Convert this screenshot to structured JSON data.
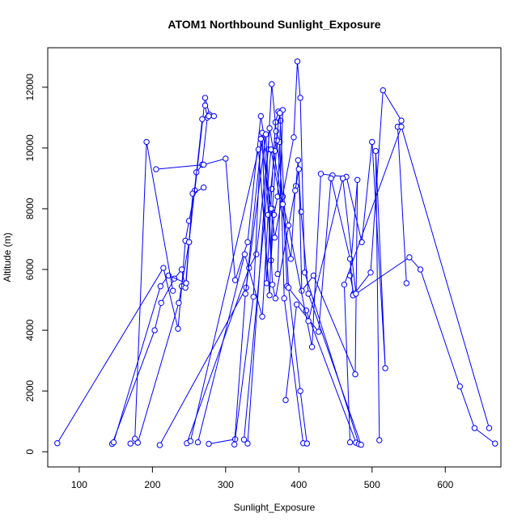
{
  "chart_data": {
    "type": "scatter",
    "title": "ATOM1 Northbound Sunlight_Exposure",
    "xlabel": "Sunlight_Exposure",
    "ylabel": "Altitude (m)",
    "xlim": [
      57,
      676
    ],
    "ylim": [
      -500,
      13300
    ],
    "x_ticks": [
      100,
      200,
      300,
      400,
      500,
      600
    ],
    "y_ticks": [
      0,
      2000,
      4000,
      6000,
      8000,
      10000,
      12000
    ],
    "grid": false,
    "point_style": "open-circle-with-connecting-line",
    "color": "#0000ff",
    "series": [
      {
        "values": [
          [
            70,
            280
          ],
          [
            215,
            6050
          ],
          [
            235,
            4050
          ],
          [
            240,
            5450
          ],
          [
            245,
            6950
          ],
          [
            250,
            7600
          ],
          [
            258,
            8600
          ],
          [
            272,
            11650
          ],
          [
            278,
            11100
          ],
          [
            284,
            11050
          ]
        ]
      },
      {
        "values": [
          [
            145,
            260
          ],
          [
            203,
            4000
          ],
          [
            212,
            4900
          ],
          [
            230,
            5700
          ],
          [
            240,
            6000
          ],
          [
            245,
            5400
          ],
          [
            250,
            6900
          ],
          [
            260,
            9200
          ],
          [
            268,
            9450
          ],
          [
            275,
            11000
          ],
          [
            272,
            11400
          ]
        ]
      },
      {
        "values": [
          [
            147,
            310
          ],
          [
            211,
            5450
          ],
          [
            222,
            5800
          ],
          [
            246,
            5550
          ],
          [
            255,
            8500
          ],
          [
            270,
            8700
          ]
        ]
      },
      {
        "values": [
          [
            170,
            270
          ],
          [
            180,
            300
          ],
          [
            236,
            4900
          ],
          [
            250,
            6900
          ],
          [
            268,
            10950
          ],
          [
            277,
            11050
          ]
        ]
      },
      {
        "values": [
          [
            176,
            430
          ],
          [
            192,
            10200
          ],
          [
            228,
            5300
          ]
        ]
      },
      {
        "values": [
          [
            205,
            9300
          ],
          [
            270,
            9450
          ],
          [
            300,
            9650
          ],
          [
            313,
            5650
          ],
          [
            330,
            6900
          ],
          [
            348,
            11050
          ],
          [
            352,
            10450
          ],
          [
            362,
            6300
          ],
          [
            366,
            7800
          ],
          [
            371,
            8400
          ],
          [
            375,
            10900
          ]
        ]
      },
      {
        "values": [
          [
            210,
            220
          ],
          [
            328,
            5400
          ],
          [
            350,
            10500
          ],
          [
            356,
            5550
          ],
          [
            363,
            8650
          ],
          [
            368,
            10850
          ],
          [
            372,
            11200
          ],
          [
            378,
            11250
          ],
          [
            371,
            5850
          ]
        ]
      },
      {
        "values": [
          [
            247,
            280
          ],
          [
            332,
            6050
          ],
          [
            342,
            6500
          ],
          [
            358,
            9950
          ],
          [
            363,
            12100
          ],
          [
            369,
            10550
          ],
          [
            374,
            10200
          ],
          [
            380,
            5050
          ],
          [
            406,
            280
          ]
        ]
      },
      {
        "values": [
          [
            252,
            350
          ],
          [
            345,
            9950
          ],
          [
            360,
            5150
          ],
          [
            364,
            8000
          ],
          [
            370,
            10250
          ],
          [
            378,
            8400
          ],
          [
            384,
            5450
          ],
          [
            410,
            4650
          ],
          [
            478,
            300
          ]
        ]
      },
      {
        "values": [
          [
            262,
            310
          ],
          [
            326,
            6500
          ],
          [
            350,
            4450
          ],
          [
            358,
            7800
          ],
          [
            367,
            9900
          ],
          [
            374,
            11150
          ],
          [
            386,
            5400
          ],
          [
            402,
            2000
          ],
          [
            411,
            270
          ]
        ]
      },
      {
        "values": [
          [
            277,
            260
          ],
          [
            313,
            410
          ],
          [
            338,
            5100
          ],
          [
            348,
            10300
          ],
          [
            362,
            8000
          ],
          [
            367,
            7050
          ],
          [
            393,
            10350
          ],
          [
            398,
            12850
          ],
          [
            402,
            11650
          ],
          [
            408,
            5900
          ],
          [
            482,
            250
          ]
        ]
      },
      {
        "values": [
          [
            312,
            240
          ],
          [
            327,
            5200
          ],
          [
            355,
            10450
          ],
          [
            364,
            5500
          ],
          [
            368,
            5050
          ],
          [
            396,
            8750
          ],
          [
            399,
            9600
          ],
          [
            403,
            7900
          ],
          [
            413,
            5200
          ],
          [
            485,
            230
          ]
        ]
      },
      {
        "values": [
          [
            325,
            400
          ],
          [
            362,
            9950
          ],
          [
            389,
            6350
          ],
          [
            395,
            8600
          ],
          [
            400,
            9300
          ],
          [
            404,
            5300
          ],
          [
            420,
            5800
          ],
          [
            477,
            2550
          ],
          [
            480,
            8950
          ],
          [
            470,
            5800
          ],
          [
            475,
            5200
          ]
        ]
      },
      {
        "values": [
          [
            330,
            270
          ],
          [
            360,
            10650
          ],
          [
            378,
            8150
          ],
          [
            386,
            7450
          ],
          [
            418,
            3450
          ],
          [
            430,
            9150
          ],
          [
            446,
            9100
          ],
          [
            465,
            9050
          ],
          [
            486,
            6900
          ],
          [
            500,
            10200
          ],
          [
            518,
            2750
          ],
          [
            505,
            9900
          ],
          [
            510,
            380
          ]
        ]
      },
      {
        "values": [
          [
            382,
            1700
          ],
          [
            397,
            4850
          ],
          [
            427,
            3950
          ],
          [
            444,
            9000
          ],
          [
            470,
            6350
          ],
          [
            474,
            5150
          ],
          [
            498,
            5900
          ],
          [
            515,
            11900
          ],
          [
            540,
            10900
          ],
          [
            535,
            10700
          ],
          [
            547,
            5550
          ]
        ]
      },
      {
        "values": [
          [
            413,
            4300
          ],
          [
            460,
            9000
          ],
          [
            478,
            5200
          ],
          [
            551,
            6400
          ],
          [
            566,
            6000
          ],
          [
            620,
            2150
          ],
          [
            640,
            780
          ],
          [
            668,
            270
          ]
        ]
      },
      {
        "values": [
          [
            470,
            310
          ],
          [
            462,
            5500
          ],
          [
            540,
            10700
          ],
          [
            660,
            780
          ]
        ]
      }
    ]
  }
}
